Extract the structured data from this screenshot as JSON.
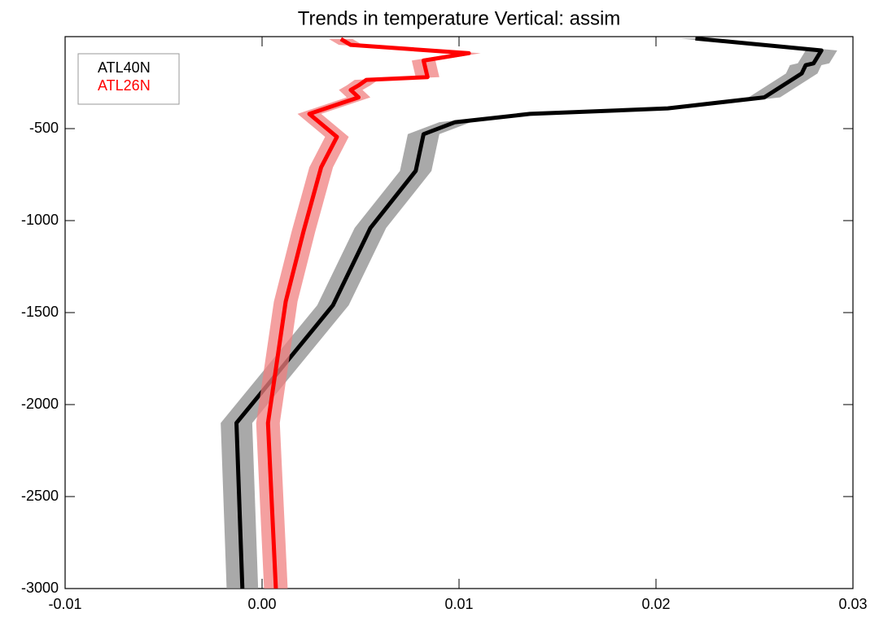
{
  "chart_data": {
    "type": "line",
    "title": "Trends in temperature Vertical: assim",
    "xlim": [
      -0.01,
      0.03
    ],
    "xticks": [
      -0.01,
      {
        "value": 0,
        "label": "0.00"
      },
      0.01,
      0.02,
      0.03
    ],
    "ylim": [
      -3000,
      0
    ],
    "yticks": [
      -3000,
      -2500,
      -2000,
      -1500,
      -1000,
      -500
    ],
    "legend": "upper left",
    "series": [
      {
        "name": "ATL40N",
        "color": "#000000",
        "band_color": "#8c8c8c",
        "band_halfwidth": 0.0008,
        "x": [
          0.022,
          0.0284,
          0.028,
          0.0276,
          0.0274,
          0.0255,
          0.0206,
          0.0136,
          0.0098,
          0.0082,
          0.0078,
          0.0055,
          0.0036,
          -0.0013,
          -0.001
        ],
        "values": [
          -10,
          -75,
          -145,
          -155,
          -200,
          -330,
          -390,
          -420,
          -465,
          -530,
          -730,
          -1040,
          -1460,
          -2100,
          -3000
        ]
      },
      {
        "name": "ATL26N",
        "color": "#ff0000",
        "band_color": "#f08080",
        "band_halfwidth": 0.0006,
        "x": [
          0.004,
          0.0045,
          0.0105,
          0.0082,
          0.0084,
          0.0053,
          0.0049,
          0.0045,
          0.0049,
          0.0024,
          0.0038,
          0.003,
          0.0021,
          0.0012,
          0.0003,
          0.0007
        ],
        "values": [
          -13,
          -45,
          -90,
          -130,
          -220,
          -235,
          -265,
          -290,
          -330,
          -420,
          -545,
          -710,
          -1060,
          -1440,
          -2100,
          -3000
        ]
      }
    ]
  }
}
